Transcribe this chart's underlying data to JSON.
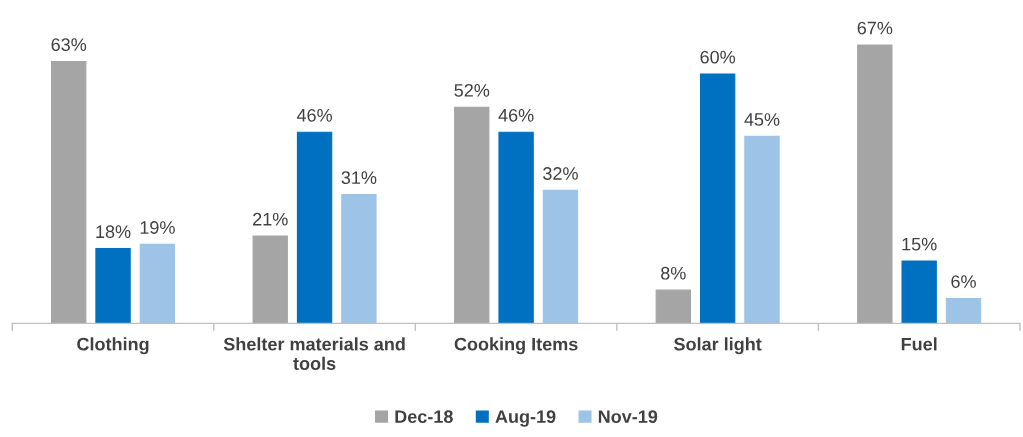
{
  "chart_data": {
    "type": "bar",
    "categories": [
      "Clothing",
      "Shelter materials and\ntools",
      "Cooking Items",
      "Solar light",
      "Fuel"
    ],
    "series": [
      {
        "name": "Dec-18",
        "color": "#a5a5a5",
        "values": [
          63,
          21,
          52,
          8,
          67
        ],
        "value_labels": [
          "63%",
          "21%",
          "52%",
          "8%",
          "67%"
        ]
      },
      {
        "name": "Aug-19",
        "color": "#0070c0",
        "values": [
          18,
          46,
          46,
          60,
          15
        ],
        "value_labels": [
          "18%",
          "46%",
          "46%",
          "60%",
          "15%"
        ]
      },
      {
        "name": "Nov-19",
        "color": "#9dc3e6",
        "values": [
          19,
          31,
          32,
          45,
          6
        ],
        "value_labels": [
          "19%",
          "31%",
          "32%",
          "45%",
          "6%"
        ]
      }
    ],
    "legend": "bottom",
    "grid": false
  }
}
